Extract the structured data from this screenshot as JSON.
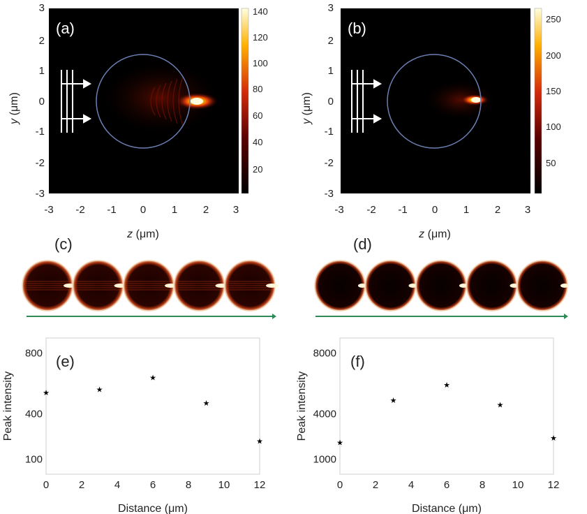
{
  "panels": {
    "a": {
      "label": "(a)",
      "colorbar_ticks": [
        "140",
        "120",
        "100",
        "80",
        "60",
        "40",
        "20"
      ]
    },
    "b": {
      "label": "(b)",
      "colorbar_ticks": [
        "250",
        "200",
        "150",
        "100",
        "50"
      ]
    },
    "c": {
      "label": "(c)"
    },
    "d": {
      "label": "(d)"
    },
    "e": {
      "label": "(e)"
    },
    "f": {
      "label": "(f)"
    }
  },
  "field_maps": {
    "x_ticks": [
      "-3",
      "-2",
      "-1",
      "0",
      "1",
      "2",
      "3"
    ],
    "y_ticks": [
      "3",
      "2",
      "1",
      "0",
      "-1",
      "-2",
      "-3"
    ],
    "xlabel_var": "z",
    "xlabel_unit": "(μm)",
    "ylabel_var": "y",
    "ylabel_unit": "(μm)"
  },
  "chain": {
    "sphere_count": 5
  },
  "colors": {
    "hot_low": "#000000",
    "hot_mid": "#d42a0a",
    "hot_high": "#ffff80",
    "sphere_outline": "#6b7fb3",
    "axis_arrow": "#2e8b57"
  },
  "chart_data": [
    {
      "type": "scatter",
      "panel": "(e)",
      "xlabel": "Distance (μm)",
      "ylabel": "Peak intensity",
      "x_ticks": [
        "0",
        "2",
        "4",
        "6",
        "8",
        "10",
        "12"
      ],
      "y_ticks": [
        "800",
        "400",
        "100"
      ],
      "xlim": [
        0,
        12
      ],
      "ylim": [
        0,
        900
      ],
      "x": [
        0,
        3,
        6,
        9,
        12
      ],
      "y": [
        540,
        560,
        640,
        470,
        220
      ]
    },
    {
      "type": "scatter",
      "panel": "(f)",
      "xlabel": "Distance (μm)",
      "ylabel": "Peak intensity",
      "x_ticks": [
        "0",
        "2",
        "4",
        "6",
        "8",
        "10",
        "12"
      ],
      "y_ticks": [
        "8000",
        "4000",
        "1000"
      ],
      "xlim": [
        0,
        12
      ],
      "ylim": [
        0,
        9000
      ],
      "x": [
        0,
        3,
        6,
        9,
        12
      ],
      "y": [
        2100,
        4900,
        5900,
        4600,
        2400
      ]
    }
  ]
}
